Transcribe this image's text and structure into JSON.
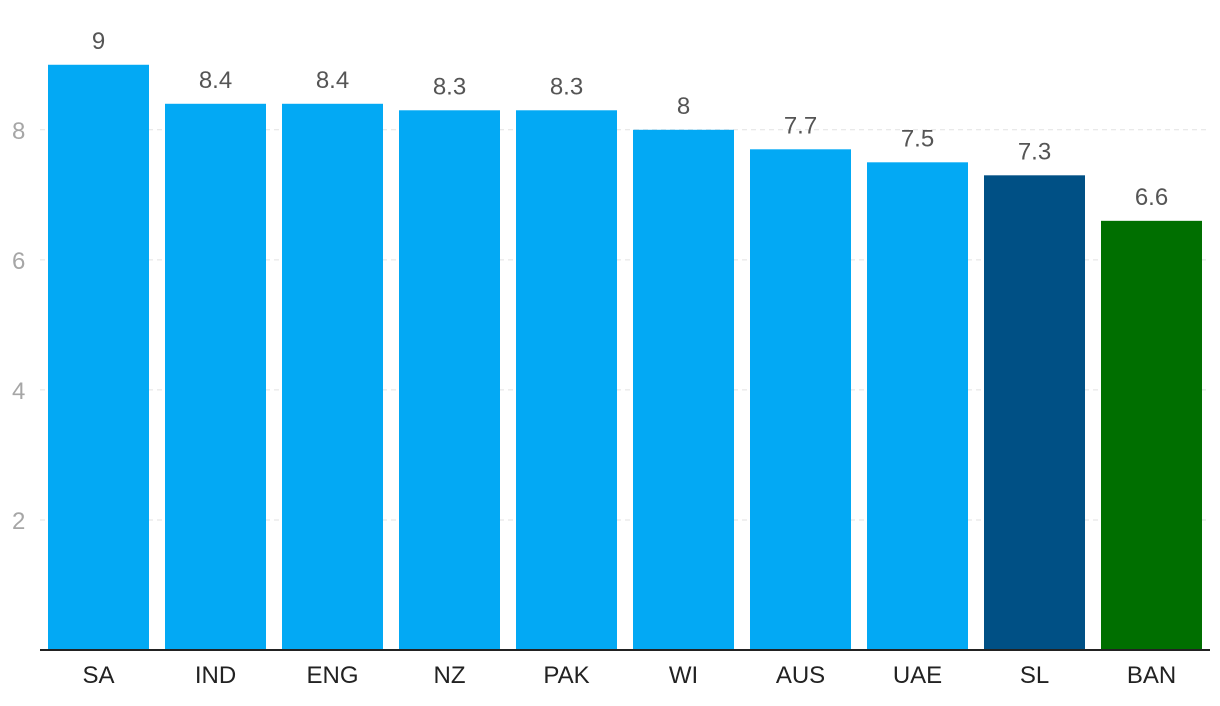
{
  "chart_data": {
    "type": "bar",
    "title": "",
    "xlabel": "",
    "ylabel": "",
    "categories": [
      "SA",
      "IND",
      "ENG",
      "NZ",
      "PAK",
      "WI",
      "AUS",
      "UAE",
      "SL",
      "BAN"
    ],
    "values": [
      9,
      8.4,
      8.4,
      8.3,
      8.3,
      8,
      7.7,
      7.5,
      7.3,
      6.6
    ],
    "value_labels": [
      "9",
      "8.4",
      "8.4",
      "8.3",
      "8.3",
      "8",
      "7.7",
      "7.5",
      "7.3",
      "6.6"
    ],
    "bar_colors": [
      "#03a9f4",
      "#03a9f4",
      "#03a9f4",
      "#03a9f4",
      "#03a9f4",
      "#03a9f4",
      "#03a9f4",
      "#03a9f4",
      "#005085",
      "#006f00"
    ],
    "ylim": [
      0,
      9.75
    ],
    "yticks": [
      2,
      4,
      6,
      8
    ],
    "ytick_labels": [
      "2",
      "4",
      "6",
      "8"
    ],
    "grid": true
  }
}
